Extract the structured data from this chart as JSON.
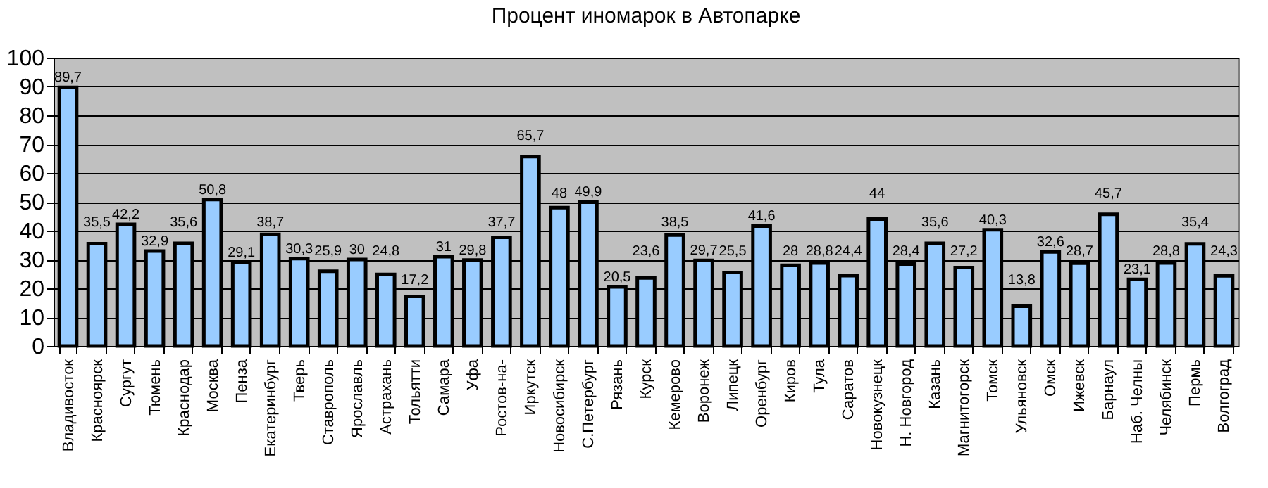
{
  "chart_data": {
    "type": "bar",
    "title": "Процент иномарок в Автопарке",
    "categories": [
      "Владивосток",
      "Красноярск",
      "Сургут",
      "Тюмень",
      "Краснодар",
      "Москва",
      "Пенза",
      "Екатеринбург",
      "Тверь",
      "Ставрополь",
      "Ярославль",
      "Астрахань",
      "Тольятти",
      "Самара",
      "Уфа",
      "Ростов-на-",
      "Иркутск",
      "Новосибирск",
      "С.Петербург",
      "Рязань",
      "Курск",
      "Кемерово",
      "Воронеж",
      "Липецк",
      "Оренбург",
      "Киров",
      "Тула",
      "Саратов",
      "Новокузнецк",
      "Н. Новгород",
      "Казань",
      "Магнитогорск",
      "Томск",
      "Ульяновск",
      "Омск",
      "Ижевск",
      "Барнаул",
      "Наб. Челны",
      "Челябинск",
      "Пермь",
      "Волгоград"
    ],
    "values": [
      89.7,
      35.5,
      42.2,
      32.9,
      35.6,
      50.8,
      29.1,
      38.7,
      30.3,
      25.9,
      30,
      24.8,
      17.2,
      31,
      29.8,
      37.7,
      65.7,
      48,
      49.9,
      20.5,
      23.6,
      38.5,
      29.7,
      25.5,
      41.6,
      28,
      28.8,
      24.4,
      44,
      28.4,
      35.6,
      27.2,
      40.3,
      13.8,
      32.6,
      28.7,
      45.7,
      23.1,
      28.8,
      35.4,
      24.3
    ],
    "value_labels": [
      "89,7",
      "35,5",
      "42,2",
      "32,9",
      "35,6",
      "50,8",
      "29,1",
      "38,7",
      "30,3",
      "25,9",
      "30",
      "24,8",
      "17,2",
      "31",
      "29,8",
      "37,7",
      "65,7",
      "48",
      "49,9",
      "20,5",
      "23,6",
      "38,5",
      "29,7",
      "25,5",
      "41,6",
      "28",
      "28,8",
      "24,4",
      "44",
      "28,4",
      "35,6",
      "27,2",
      "40,3",
      "13,8",
      "32,6",
      "28,7",
      "45,7",
      "23,1",
      "28,8",
      "35,4",
      "24,3"
    ],
    "color": "#99ccff",
    "ylim": [
      0,
      100
    ],
    "yticks": [
      0,
      10,
      20,
      30,
      40,
      50,
      60,
      70,
      80,
      90,
      100
    ],
    "grid": "y"
  }
}
